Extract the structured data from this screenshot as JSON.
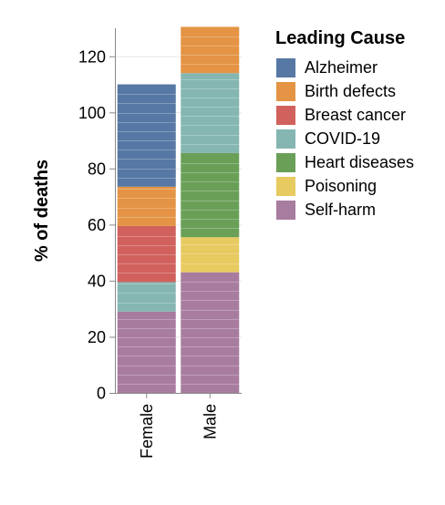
{
  "chart_data": {
    "type": "bar",
    "stacked": true,
    "categories": [
      "Female",
      "Male"
    ],
    "ylabel": "% of deaths",
    "xlabel": "",
    "ylim": [
      0,
      130
    ],
    "yticks": [
      0,
      20,
      40,
      60,
      80,
      100,
      120
    ],
    "grid": true,
    "legend": {
      "title": "Leading Cause",
      "placement": "right",
      "entries": [
        "Alzheimer",
        "Birth defects",
        "Breast cancer",
        "COVID-19",
        "Heart diseases",
        "Poisoning",
        "Self-harm"
      ]
    },
    "colors": {
      "Alzheimer": "#5778a4",
      "Birth defects": "#e49444",
      "Breast cancer": "#d1615d",
      "COVID-19": "#85b6b2",
      "Heart diseases": "#6a9f58",
      "Poisoning": "#e7ca60",
      "Self-harm": "#a87c9f"
    },
    "segment_unit": 3.3,
    "stack_order": [
      "Self-harm",
      "Poisoning",
      "Heart diseases",
      "COVID-19",
      "Breast cancer",
      "Birth defects",
      "Alzheimer"
    ],
    "series": [
      {
        "name": "Alzheimer",
        "values": [
          36.5,
          0
        ]
      },
      {
        "name": "Birth defects",
        "values": [
          14,
          16.5
        ]
      },
      {
        "name": "Breast cancer",
        "values": [
          20,
          0
        ]
      },
      {
        "name": "COVID-19",
        "values": [
          10.5,
          28.5
        ]
      },
      {
        "name": "Heart diseases",
        "values": [
          0,
          30
        ]
      },
      {
        "name": "Poisoning",
        "values": [
          0,
          12.5
        ]
      },
      {
        "name": "Self-harm",
        "values": [
          29,
          43
        ]
      }
    ]
  }
}
